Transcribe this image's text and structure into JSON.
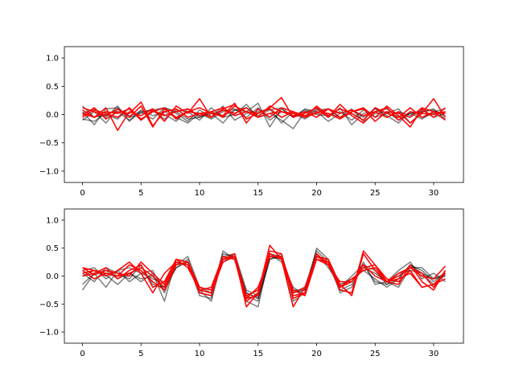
{
  "chart_data": [
    {
      "type": "line",
      "title": "",
      "xlabel": "",
      "ylabel": "",
      "xlim": [
        -1.55,
        32.55
      ],
      "ylim": [
        -1.2,
        1.2
      ],
      "xticks": [
        0,
        5,
        10,
        15,
        20,
        25,
        30
      ],
      "yticks": [
        -1.0,
        -0.5,
        0.0,
        0.5,
        1.0
      ],
      "ytick_labels": [
        "−1.0",
        "−0.5",
        "0.0",
        "0.5",
        "1.0"
      ],
      "grid": false,
      "series_colors": {
        "gray": "#000000",
        "red": "#ff0000"
      },
      "series": [
        {
          "color": "gray",
          "values": [
            0.15,
            -0.05,
            0.0,
            -0.08,
            0.12,
            -0.1,
            0.05,
            0.0,
            -0.12,
            0.1,
            -0.05,
            0.02,
            -0.15,
            0.08,
            0.05,
            0.2,
            -0.22,
            0.1,
            -0.05,
            0.08,
            0.0,
            -0.02,
            0.05,
            -0.1,
            0.08,
            -0.05,
            0.02,
            0.1,
            -0.15,
            0.05,
            0.08,
            -0.03
          ]
        },
        {
          "color": "gray",
          "values": [
            -0.1,
            0.05,
            -0.15,
            0.1,
            -0.02,
            0.05,
            -0.08,
            0.12,
            0.02,
            -0.12,
            0.08,
            -0.05,
            0.15,
            -0.1,
            0.02,
            0.05,
            0.1,
            -0.15,
            0.05,
            -0.02,
            0.08,
            0.1,
            -0.05,
            0.02,
            -0.1,
            0.12,
            -0.05,
            0.05,
            -0.02,
            0.08,
            -0.05,
            0.02
          ]
        },
        {
          "color": "gray",
          "values": [
            0.05,
            -0.18,
            0.1,
            0.12,
            -0.05,
            0.02,
            0.1,
            -0.08,
            0.08,
            0.05,
            -0.1,
            0.12,
            -0.05,
            0.0,
            0.18,
            -0.05,
            0.02,
            -0.1,
            -0.25,
            0.05,
            0.1,
            -0.05,
            0.12,
            -0.18,
            0.02,
            0.05,
            0.1,
            -0.05,
            0.02,
            -0.08,
            0.05,
            0.1
          ]
        },
        {
          "color": "gray",
          "values": [
            -0.08,
            -0.12,
            0.02,
            0.05,
            -0.1,
            0.08,
            -0.02,
            0.05,
            -0.05,
            -0.15,
            0.02,
            -0.08,
            0.05,
            0.1,
            -0.05,
            0.12,
            -0.1,
            0.05,
            0.02,
            -0.08,
            0.05,
            0.02,
            -0.05,
            0.1,
            -0.12,
            0.02,
            0.05,
            -0.1,
            0.02,
            0.05,
            0.1,
            -0.08
          ]
        },
        {
          "color": "gray",
          "values": [
            0.02,
            0.1,
            -0.05,
            0.15,
            -0.12,
            0.05,
            0.08,
            0.12,
            0.05,
            -0.08,
            -0.05,
            0.05,
            -0.02,
            0.08,
            0.12,
            -0.02,
            0.08,
            0.12,
            -0.05,
            0.1,
            0.05,
            -0.12,
            0.02,
            0.08,
            -0.05,
            0.1,
            -0.02,
            -0.15,
            0.05,
            -0.05,
            0.02,
            0.05
          ]
        },
        {
          "color": "red",
          "values": [
            0.08,
            -0.05,
            0.12,
            -0.28,
            0.05,
            -0.02,
            0.1,
            -0.12,
            0.15,
            0.02,
            0.28,
            -0.05,
            0.1,
            0.18,
            -0.08,
            0.02,
            0.12,
            0.3,
            -0.05,
            0.02,
            0.12,
            -0.05,
            0.18,
            -0.02,
            -0.15,
            0.05,
            0.12,
            -0.1,
            0.05,
            0.02,
            0.28,
            -0.05
          ]
        },
        {
          "color": "red",
          "values": [
            -0.02,
            0.12,
            -0.08,
            0.05,
            0.02,
            0.22,
            -0.2,
            0.05,
            0.1,
            -0.05,
            0.02,
            0.05,
            -0.05,
            0.15,
            0.05,
            0.02,
            0.1,
            -0.05,
            0.05,
            -0.02,
            0.02,
            0.1,
            -0.05,
            0.05,
            0.12,
            -0.05,
            0.15,
            -0.02,
            -0.22,
            0.1,
            -0.05,
            0.12
          ]
        },
        {
          "color": "red",
          "values": [
            0.12,
            0.05,
            -0.02,
            0.1,
            -0.05,
            0.15,
            -0.22,
            0.1,
            -0.05,
            0.05,
            0.12,
            0.02,
            -0.02,
            0.2,
            -0.15,
            0.1,
            -0.05,
            0.12,
            0.05,
            -0.05,
            0.15,
            -0.02,
            0.1,
            0.02,
            -0.1,
            0.12,
            0.02,
            -0.05,
            0.12,
            -0.05,
            0.05,
            0.02
          ]
        },
        {
          "color": "red",
          "values": [
            0.02,
            -0.05,
            0.05,
            0.02,
            0.1,
            -0.1,
            0.08,
            -0.02,
            0.05,
            0.1,
            -0.02,
            0.05,
            0.12,
            -0.02,
            0.05,
            -0.05,
            0.02,
            0.05,
            -0.02,
            0.05,
            -0.05,
            0.1,
            0.02,
            0.08,
            -0.02,
            0.05,
            -0.05,
            0.05,
            -0.15,
            0.02,
            0.0,
            0.05
          ]
        },
        {
          "color": "red",
          "values": [
            -0.05,
            0.08,
            0.02,
            -0.05,
            0.12,
            -0.08,
            0.05,
            0.12,
            -0.08,
            0.05,
            0.02,
            -0.05,
            0.08,
            0.02,
            0.12,
            -0.05,
            0.15,
            0.05,
            0.02,
            -0.05,
            0.05,
            0.02,
            -0.08,
            0.05,
            0.1,
            -0.12,
            0.05,
            0.02,
            -0.05,
            0.12,
            0.05,
            -0.1
          ]
        }
      ]
    },
    {
      "type": "line",
      "title": "",
      "xlabel": "",
      "ylabel": "",
      "xlim": [
        -1.55,
        32.55
      ],
      "ylim": [
        -1.2,
        1.2
      ],
      "xticks": [
        0,
        5,
        10,
        15,
        20,
        25,
        30
      ],
      "yticks": [
        -1.0,
        -0.5,
        0.0,
        0.5,
        1.0
      ],
      "ytick_labels": [
        "−1.0",
        "−0.5",
        "0.0",
        "0.5",
        "1.0"
      ],
      "grid": false,
      "series_colors": {
        "gray": "#000000",
        "red": "#ff0000"
      },
      "series": [
        {
          "color": "gray",
          "values": [
            0.1,
            0.15,
            -0.05,
            0.1,
            0.15,
            0.05,
            -0.05,
            -0.1,
            0.2,
            0.35,
            -0.2,
            -0.3,
            0.4,
            0.35,
            -0.3,
            -0.4,
            0.35,
            0.3,
            -0.3,
            -0.2,
            0.45,
            0.25,
            -0.2,
            -0.1,
            0.2,
            0.1,
            -0.15,
            -0.05,
            0.2,
            0.1,
            -0.1,
            0.05
          ]
        },
        {
          "color": "gray",
          "values": [
            -0.25,
            0.05,
            0.1,
            -0.05,
            0.05,
            -0.1,
            0.05,
            -0.45,
            0.3,
            0.25,
            -0.35,
            -0.4,
            0.45,
            0.3,
            -0.45,
            -0.55,
            0.4,
            0.35,
            -0.45,
            -0.3,
            0.5,
            0.3,
            -0.3,
            -0.2,
            0.25,
            -0.15,
            -0.1,
            0.1,
            0.25,
            -0.05,
            0.05,
            -0.1
          ]
        },
        {
          "color": "gray",
          "values": [
            0.05,
            -0.1,
            0.15,
            0.05,
            -0.05,
            0.2,
            -0.15,
            -0.2,
            0.15,
            0.3,
            -0.25,
            -0.45,
            0.35,
            0.4,
            -0.35,
            -0.45,
            0.3,
            0.35,
            -0.25,
            -0.25,
            0.4,
            0.2,
            -0.25,
            -0.15,
            0.15,
            0.05,
            -0.1,
            -0.2,
            0.15,
            0.15,
            -0.05,
            0.0
          ]
        },
        {
          "color": "gray",
          "values": [
            -0.15,
            0.05,
            -0.2,
            0.1,
            -0.1,
            0.05,
            0.1,
            -0.3,
            0.25,
            0.2,
            -0.2,
            -0.25,
            0.25,
            0.4,
            -0.25,
            -0.35,
            0.4,
            0.25,
            -0.2,
            -0.35,
            0.35,
            0.3,
            -0.2,
            0.0,
            0.2,
            -0.1,
            -0.15,
            0.05,
            0.1,
            0.05,
            -0.15,
            0.02
          ]
        },
        {
          "color": "gray",
          "values": [
            0.0,
            0.1,
            0.02,
            -0.15,
            0.05,
            -0.05,
            0.0,
            -0.25,
            0.15,
            0.25,
            -0.3,
            -0.35,
            0.35,
            0.3,
            -0.3,
            -0.4,
            0.3,
            0.4,
            -0.3,
            -0.25,
            0.4,
            0.15,
            -0.15,
            -0.05,
            0.1,
            -0.05,
            -0.2,
            -0.05,
            0.2,
            0.05,
            -0.05,
            0.05
          ]
        },
        {
          "color": "red",
          "values": [
            0.15,
            0.1,
            0.0,
            0.1,
            0.25,
            0.05,
            -0.3,
            0.05,
            0.25,
            0.2,
            -0.25,
            -0.3,
            0.3,
            0.35,
            -0.55,
            -0.3,
            0.55,
            0.3,
            -0.55,
            -0.2,
            0.3,
            0.25,
            -0.25,
            -0.3,
            0.45,
            0.2,
            -0.05,
            -0.1,
            0.1,
            -0.2,
            -0.15,
            -0.05
          ]
        },
        {
          "color": "red",
          "values": [
            0.0,
            0.05,
            0.15,
            -0.05,
            0.1,
            0.2,
            -0.2,
            -0.1,
            0.3,
            0.25,
            -0.2,
            -0.25,
            0.3,
            0.4,
            -0.4,
            -0.35,
            0.45,
            0.4,
            -0.4,
            -0.3,
            0.4,
            0.2,
            -0.2,
            -0.05,
            0.1,
            0.15,
            -0.1,
            0.0,
            0.15,
            0.05,
            -0.2,
            0.1
          ]
        },
        {
          "color": "red",
          "values": [
            0.1,
            -0.05,
            0.05,
            0.0,
            0.2,
            0.1,
            -0.1,
            -0.25,
            0.2,
            0.25,
            -0.25,
            -0.2,
            0.35,
            0.3,
            -0.45,
            -0.3,
            0.35,
            0.35,
            -0.3,
            -0.2,
            0.35,
            0.3,
            -0.15,
            -0.35,
            0.4,
            0.1,
            -0.1,
            -0.15,
            0.2,
            -0.1,
            -0.25,
            0.1
          ]
        },
        {
          "color": "red",
          "values": [
            0.05,
            0.1,
            0.05,
            0.0,
            0.05,
            0.15,
            0.0,
            -0.2,
            0.25,
            0.2,
            -0.3,
            -0.35,
            0.3,
            0.35,
            -0.35,
            -0.25,
            0.4,
            0.3,
            -0.35,
            -0.3,
            0.35,
            0.25,
            -0.2,
            -0.1,
            0.2,
            0.0,
            -0.1,
            0.05,
            0.15,
            0.0,
            -0.05,
            0.18
          ]
        },
        {
          "color": "red",
          "values": [
            0.15,
            0.02,
            0.1,
            0.05,
            0.0,
            0.25,
            0.05,
            -0.15,
            0.3,
            0.15,
            -0.25,
            -0.3,
            0.25,
            0.35,
            -0.4,
            -0.2,
            0.35,
            0.35,
            -0.25,
            -0.35,
            0.3,
            0.2,
            -0.1,
            -0.1,
            0.15,
            0.2,
            -0.1,
            -0.05,
            0.05,
            -0.2,
            -0.15,
            0.05
          ]
        }
      ]
    }
  ]
}
